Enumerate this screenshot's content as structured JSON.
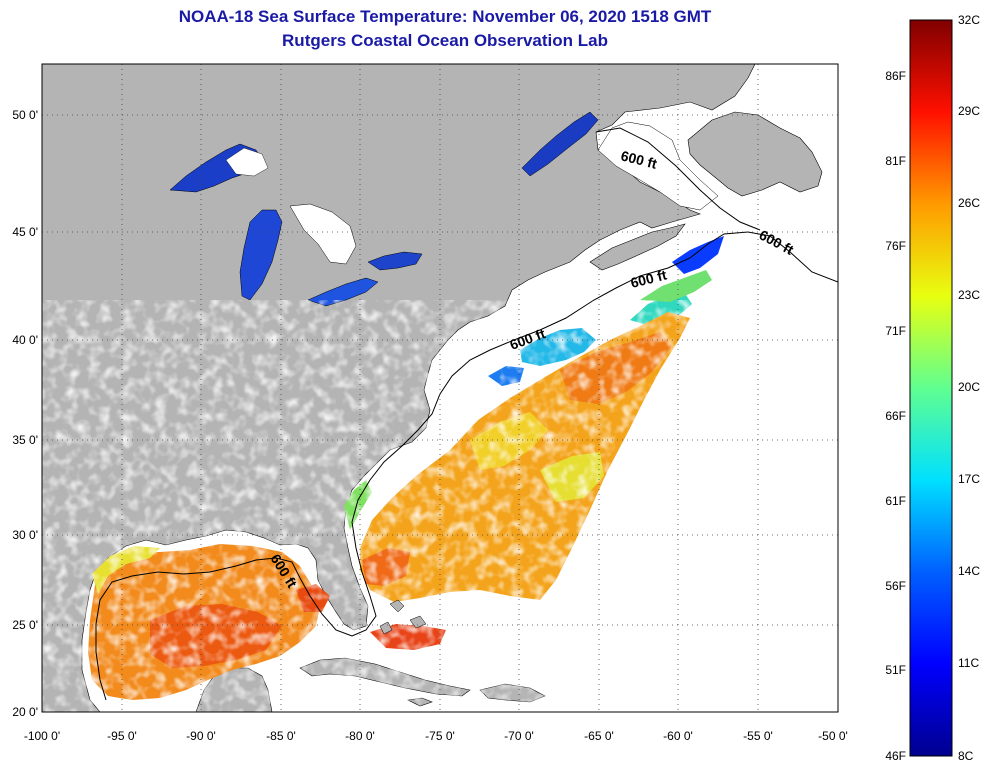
{
  "header": {
    "title": "NOAA-18 Sea Surface Temperature:  November 06, 2020 1518 GMT",
    "subtitle": "Rutgers Coastal Ocean Observation Lab"
  },
  "map": {
    "lon_ticks": [
      "-100 0'",
      "-95 0'",
      "-90 0'",
      "-85 0'",
      "-80 0'",
      "-75 0'",
      "-70 0'",
      "-65 0'",
      "-60 0'",
      "-55 0'",
      "-50 0'"
    ],
    "lat_ticks": [
      "50 0'",
      "45 0'",
      "40 0'",
      "35 0'",
      "30 0'",
      "25 0'",
      "20 0'"
    ],
    "contour_labels": [
      "600 ft",
      "600 ft",
      "600 ft",
      "600 ft",
      "600 ft"
    ],
    "colors": {
      "land": "#b4b4b4",
      "water_nodata": "#ffffff",
      "lake_blue": "#1030c0"
    }
  },
  "colorbar": {
    "celsius": [
      "32C",
      "29C",
      "26C",
      "23C",
      "20C",
      "17C",
      "14C",
      "11C",
      "8C"
    ],
    "fahrenheit": [
      "86F",
      "81F",
      "76F",
      "71F",
      "66F",
      "61F",
      "56F",
      "51F",
      "46F"
    ],
    "range_c": [
      8,
      32
    ],
    "stops": [
      "#00008f",
      "#0000ff",
      "#0080ff",
      "#00ffff",
      "#80ff80",
      "#ffff00",
      "#ff8000",
      "#ff0000",
      "#800000"
    ]
  }
}
